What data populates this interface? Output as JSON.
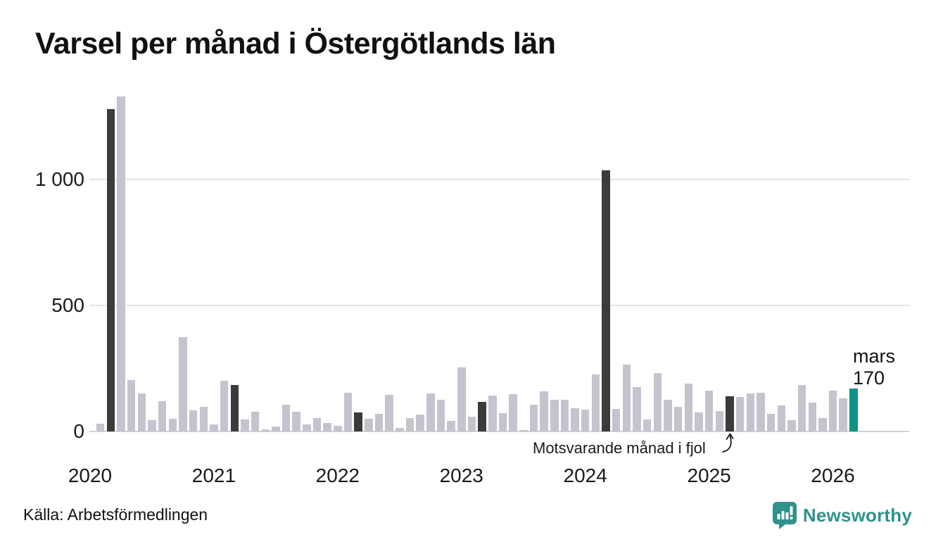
{
  "title": "Varsel per månad i Östergötlands län",
  "source": "Källa: Arbetsförmedlingen",
  "brand": {
    "name": "Newsworthy"
  },
  "annotation": {
    "text": "Motsvarande månad i fjol"
  },
  "current_label": {
    "month": "mars",
    "value": "170"
  },
  "colors": {
    "bar_normal": "#c5c3ce",
    "bar_same_month_prev_years": "#3b3b3b",
    "bar_current": "#0e9384",
    "brand_teal": "#2f928b",
    "grid": "#e4e4e6",
    "text": "#1a1a1a"
  },
  "chart_data": {
    "type": "bar",
    "title": "Varsel per månad i Östergötlands län",
    "xlabel": "",
    "ylabel": "",
    "ylim": [
      0,
      1400
    ],
    "grid": true,
    "yticks": [
      0,
      500,
      1000
    ],
    "ytick_labels": [
      "0",
      "500",
      "1 000"
    ],
    "x_year_labels": [
      "2020",
      "2021",
      "2022",
      "2023",
      "2024",
      "2025",
      "2026"
    ],
    "start_month": "2020-01",
    "values": [
      0,
      30,
      1280,
      1330,
      205,
      150,
      44,
      120,
      50,
      375,
      84,
      99,
      27,
      200,
      185,
      47,
      78,
      8,
      20,
      107,
      77,
      27,
      52,
      33,
      22,
      155,
      75,
      50,
      70,
      144,
      13,
      52,
      66,
      152,
      126,
      42,
      255,
      60,
      117,
      142,
      73,
      148,
      6,
      105,
      158,
      126,
      126,
      93,
      87,
      225,
      1035,
      88,
      265,
      175,
      48,
      232,
      125,
      98,
      190,
      75,
      163,
      80,
      140,
      138,
      152,
      155,
      70,
      103,
      45,
      184,
      114,
      52,
      163,
      130,
      170
    ],
    "fjol_indices": [
      2,
      14,
      26,
      38,
      50,
      62
    ],
    "current_index": 74,
    "current_point": {
      "month": "mars",
      "year": "2026",
      "value": 170
    }
  }
}
